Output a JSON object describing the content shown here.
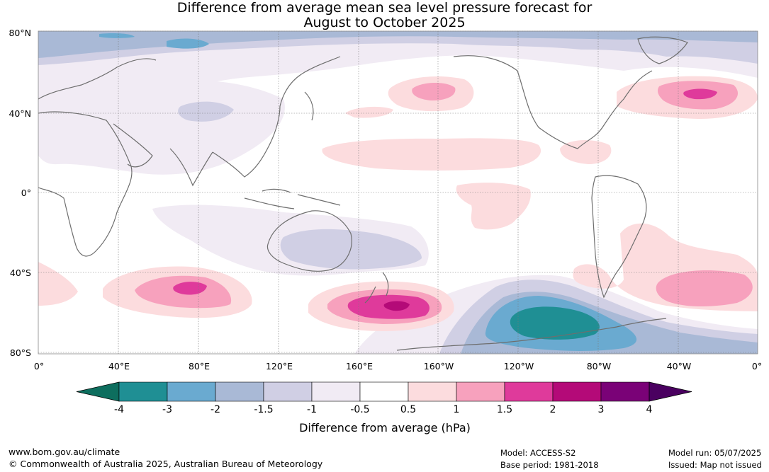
{
  "title_line1": "Difference from average mean sea level pressure forecast for",
  "title_line2": "August to October 2025",
  "lat_labels": [
    "80°N",
    "40°N",
    "0°",
    "40°S",
    "80°S"
  ],
  "lon_labels": [
    "0°",
    "40°E",
    "80°E",
    "120°E",
    "160°E",
    "160°W",
    "120°W",
    "80°W",
    "40°W",
    "0°"
  ],
  "colorbar": {
    "ticks": [
      "-4",
      "-3",
      "-2",
      "-1.5",
      "-1",
      "-0.5",
      "0.5",
      "1",
      "1.5",
      "2",
      "3",
      "4"
    ],
    "colors": [
      "#0d6e5e",
      "#1f8f94",
      "#6aaad0",
      "#a9b9d6",
      "#d0cfe4",
      "#f1ebf4",
      "#ffffff",
      "#fcdcde",
      "#f7a1bd",
      "#df3a9b",
      "#b40a78",
      "#7a0277",
      "#4a0060"
    ],
    "label": "Difference from average (hPa)"
  },
  "footer": {
    "url": "www.bom.gov.au/climate",
    "copyright": "© Commonwealth of Australia 2025, Australian Bureau of Meteorology",
    "model": "Model: ACCESS-S2",
    "base_period": "Base period: 1981-2018",
    "model_run": "Model run: 05/07/2025",
    "issued": "Issued: Map not issued"
  }
}
